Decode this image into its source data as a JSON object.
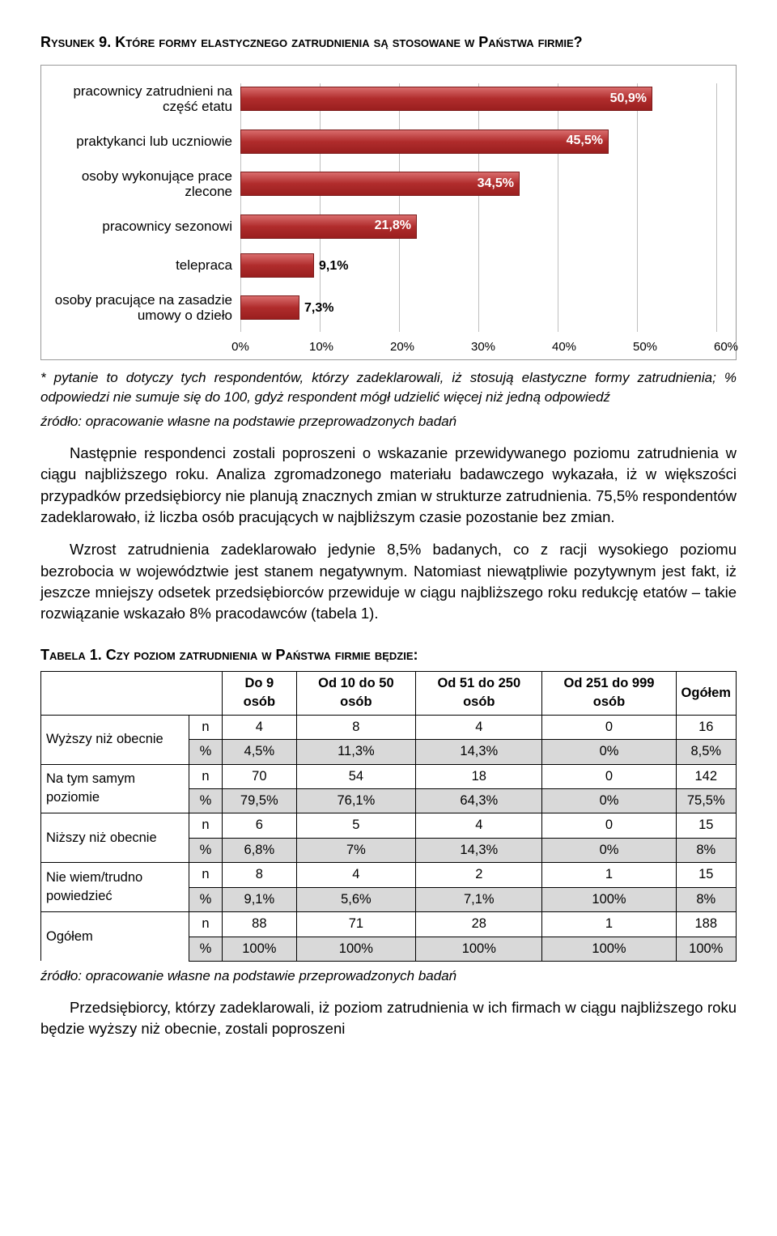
{
  "figure": {
    "title": "Rysunek 9. Które formy elastycznego zatrudnienia są stosowane w Państwa firmie?",
    "type": "bar",
    "xmin": 0,
    "xmax": 60,
    "xtick_step": 10,
    "tick_suffix": "%",
    "bar_color": "#b02c2c",
    "grid_color": "#bfbfbf",
    "items": [
      {
        "label": "pracownicy zatrudnieni na część etatu",
        "value": 50.9,
        "text": "50,9%"
      },
      {
        "label": "praktykanci lub uczniowie",
        "value": 45.5,
        "text": "45,5%"
      },
      {
        "label": "osoby wykonujące prace zlecone",
        "value": 34.5,
        "text": "34,5%"
      },
      {
        "label": "pracownicy sezonowi",
        "value": 21.8,
        "text": "21,8%"
      },
      {
        "label": "telepraca",
        "value": 9.1,
        "text": "9,1%"
      },
      {
        "label": "osoby pracujące na zasadzie umowy o dzieło",
        "value": 7.3,
        "text": "7,3%"
      }
    ]
  },
  "captions": {
    "chart_note": "* pytanie to dotyczy tych respondentów, którzy zadeklarowali, iż stosują elastyczne formy zatrudnienia; % odpowiedzi nie sumuje się do 100, gdyż respondent mógł udzielić więcej niż jedną odpowiedź",
    "source": "źródło: opracowanie własne na podstawie przeprowadzonych badań"
  },
  "paragraphs": {
    "p1": "Następnie respondenci zostali poproszeni o wskazanie przewidywanego poziomu zatrudnienia w ciągu najbliższego roku. Analiza zgromadzonego materiału badawczego wykazała, iż w większości przypadków przedsiębiorcy nie planują znacznych zmian w strukturze zatrudnienia. 75,5% respondentów zadeklarowało, iż liczba osób pracujących w najbliższym czasie pozostanie bez zmian.",
    "p2": "Wzrost zatrudnienia zadeklarowało jedynie 8,5% badanych, co z racji wysokiego poziomu bezrobocia w województwie jest stanem negatywnym. Natomiast niewątpliwie pozytywnym jest fakt, iż jeszcze mniejszy odsetek przedsiębiorców przewiduje w ciągu najbliższego roku redukcję etatów – takie rozwiązanie wskazało 8% pracodawców (tabela 1).",
    "p3": "Przedsiębiorcy, którzy zadeklarowali, iż poziom zatrudnienia w ich firmach w ciągu najbliższego roku będzie wyższy niż obecnie, zostali poproszeni"
  },
  "table": {
    "title": "Tabela 1. Czy poziom zatrudnienia w Państwa firmie będzie:",
    "columns": [
      "",
      "",
      "Do 9 osób",
      "Od 10 do 50 osób",
      "Od 51 do 250 osób",
      "Od 251 do 999 osób",
      "Ogółem"
    ],
    "rows": [
      {
        "label": "Wyższy niż obecnie",
        "n": [
          "4",
          "8",
          "4",
          "0",
          "16"
        ],
        "pct": [
          "4,5%",
          "11,3%",
          "14,3%",
          "0%",
          "8,5%"
        ]
      },
      {
        "label": "Na tym samym poziomie",
        "n": [
          "70",
          "54",
          "18",
          "0",
          "142"
        ],
        "pct": [
          "79,5%",
          "76,1%",
          "64,3%",
          "0%",
          "75,5%"
        ]
      },
      {
        "label": "Niższy niż obecnie",
        "n": [
          "6",
          "5",
          "4",
          "0",
          "15"
        ],
        "pct": [
          "6,8%",
          "7%",
          "14,3%",
          "0%",
          "8%"
        ]
      },
      {
        "label": "Nie wiem/trudno powiedzieć",
        "n": [
          "8",
          "4",
          "2",
          "1",
          "15"
        ],
        "pct": [
          "9,1%",
          "5,6%",
          "7,1%",
          "100%",
          "8%"
        ]
      },
      {
        "label": "Ogółem",
        "n": [
          "88",
          "71",
          "28",
          "1",
          "188"
        ],
        "pct": [
          "100%",
          "100%",
          "100%",
          "100%",
          "100%"
        ]
      }
    ],
    "source": "źródło: opracowanie własne na podstawie przeprowadzonych badań"
  }
}
